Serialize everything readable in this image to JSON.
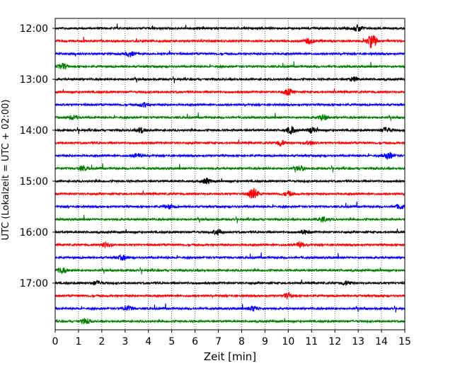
{
  "chart_data": {
    "type": "line",
    "title": "",
    "xlabel": "Zeit  [min]",
    "ylabel": "UTC (Lokalzeit = UTC + 02:00)",
    "xlim": [
      0,
      15
    ],
    "x_ticks": [
      "0",
      "1",
      "2",
      "3",
      "4",
      "5",
      "6",
      "7",
      "8",
      "9",
      "10",
      "11",
      "12",
      "13",
      "14",
      "15"
    ],
    "y_tick_labels": [
      "12:00",
      "13:00",
      "14:00",
      "15:00",
      "16:00",
      "17:00"
    ],
    "trace_interval_min": 15,
    "vertical_grid": "dotted",
    "colors": [
      "#000000",
      "#ff0000",
      "#0000ff",
      "#008000"
    ],
    "series": [
      {
        "start": "12:00",
        "color": "#000000",
        "events": [
          [
            13.0,
            0.5
          ]
        ]
      },
      {
        "start": "12:15",
        "color": "#ff0000",
        "events": [
          [
            13.6,
            1.0
          ],
          [
            10.9,
            0.4
          ]
        ]
      },
      {
        "start": "12:30",
        "color": "#0000ff",
        "events": [
          [
            3.2,
            0.35
          ]
        ]
      },
      {
        "start": "12:45",
        "color": "#008000",
        "events": [
          [
            0.3,
            0.4
          ]
        ]
      },
      {
        "start": "13:00",
        "color": "#000000",
        "events": [
          [
            12.8,
            0.3
          ]
        ]
      },
      {
        "start": "13:15",
        "color": "#ff0000",
        "events": [
          [
            10.0,
            0.45
          ]
        ]
      },
      {
        "start": "13:30",
        "color": "#0000ff",
        "events": [
          [
            3.8,
            0.3
          ]
        ]
      },
      {
        "start": "13:45",
        "color": "#008000",
        "events": [
          [
            0.8,
            0.35
          ],
          [
            11.5,
            0.4
          ]
        ]
      },
      {
        "start": "14:00",
        "color": "#000000",
        "events": [
          [
            3.7,
            0.4
          ],
          [
            10.1,
            0.5
          ],
          [
            11.0,
            0.4
          ],
          [
            14.2,
            0.4
          ]
        ]
      },
      {
        "start": "14:15",
        "color": "#ff0000",
        "events": [
          [
            9.7,
            0.4
          ],
          [
            10.9,
            0.3
          ]
        ]
      },
      {
        "start": "14:30",
        "color": "#0000ff",
        "events": [
          [
            3.5,
            0.3
          ],
          [
            14.3,
            0.5
          ]
        ]
      },
      {
        "start": "14:45",
        "color": "#008000",
        "events": [
          [
            1.2,
            0.3
          ],
          [
            10.5,
            0.35
          ]
        ]
      },
      {
        "start": "15:00",
        "color": "#000000",
        "events": [
          [
            6.5,
            0.4
          ]
        ]
      },
      {
        "start": "15:15",
        "color": "#ff0000",
        "events": [
          [
            8.5,
            0.8
          ],
          [
            10.0,
            0.35
          ]
        ]
      },
      {
        "start": "15:30",
        "color": "#0000ff",
        "events": [
          [
            4.9,
            0.3
          ],
          [
            14.8,
            0.35
          ]
        ]
      },
      {
        "start": "15:45",
        "color": "#008000",
        "events": [
          [
            11.5,
            0.35
          ]
        ]
      },
      {
        "start": "16:00",
        "color": "#000000",
        "events": [
          [
            7.0,
            0.4
          ],
          [
            10.7,
            0.3
          ]
        ]
      },
      {
        "start": "16:15",
        "color": "#ff0000",
        "events": [
          [
            2.2,
            0.4
          ],
          [
            10.5,
            0.35
          ]
        ]
      },
      {
        "start": "16:30",
        "color": "#0000ff",
        "events": [
          [
            2.9,
            0.35
          ]
        ]
      },
      {
        "start": "16:45",
        "color": "#008000",
        "events": [
          [
            0.3,
            0.45
          ]
        ]
      },
      {
        "start": "17:00",
        "color": "#000000",
        "events": [
          [
            1.8,
            0.3
          ],
          [
            12.5,
            0.3
          ]
        ]
      },
      {
        "start": "17:15",
        "color": "#ff0000",
        "events": [
          [
            10.0,
            0.35
          ]
        ]
      },
      {
        "start": "17:30",
        "color": "#0000ff",
        "events": [
          [
            3.1,
            0.35
          ],
          [
            8.5,
            0.35
          ]
        ]
      },
      {
        "start": "17:45",
        "color": "#008000",
        "events": [
          [
            1.3,
            0.4
          ]
        ]
      }
    ]
  }
}
